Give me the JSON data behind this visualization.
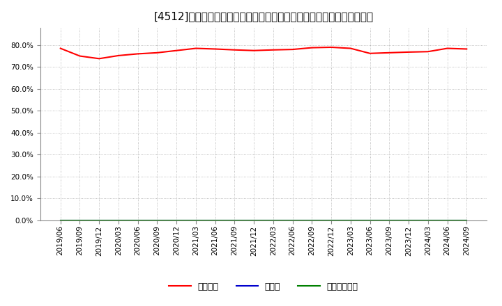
{
  "title": "[4512]　自己資本、のれん、繰延税金資産の総資産に対する比率の推移",
  "dates": [
    "2019/06",
    "2019/09",
    "2019/12",
    "2020/03",
    "2020/06",
    "2020/09",
    "2020/12",
    "2021/03",
    "2021/06",
    "2021/09",
    "2021/12",
    "2022/03",
    "2022/06",
    "2022/09",
    "2022/12",
    "2023/03",
    "2023/06",
    "2023/09",
    "2023/12",
    "2024/03",
    "2024/06",
    "2024/09"
  ],
  "equity_ratio": [
    78.5,
    75.0,
    73.8,
    75.2,
    76.0,
    76.5,
    77.5,
    78.5,
    78.2,
    77.8,
    77.5,
    77.8,
    78.0,
    78.8,
    79.0,
    78.5,
    76.2,
    76.5,
    76.8,
    77.0,
    78.5,
    78.2
  ],
  "goodwill_ratio": [
    0,
    0,
    0,
    0,
    0,
    0,
    0,
    0,
    0,
    0,
    0,
    0,
    0,
    0,
    0,
    0,
    0,
    0,
    0,
    0,
    0,
    0
  ],
  "deferred_tax_ratio": [
    0,
    0,
    0,
    0,
    0,
    0,
    0,
    0,
    0,
    0,
    0,
    0,
    0,
    0,
    0,
    0,
    0,
    0,
    0,
    0,
    0,
    0
  ],
  "line_colors": {
    "equity": "#ff0000",
    "goodwill": "#0000cd",
    "deferred_tax": "#008000"
  },
  "legend_labels": [
    "自己資本",
    "のれん",
    "繰延税金資産"
  ],
  "ylim": [
    0,
    88
  ],
  "yticks": [
    0,
    10,
    20,
    30,
    40,
    50,
    60,
    70,
    80
  ],
  "background_color": "#ffffff",
  "plot_bg_color": "#ffffff",
  "grid_color": "#999999",
  "title_fontsize": 11,
  "axis_fontsize": 7.5,
  "legend_fontsize": 9
}
